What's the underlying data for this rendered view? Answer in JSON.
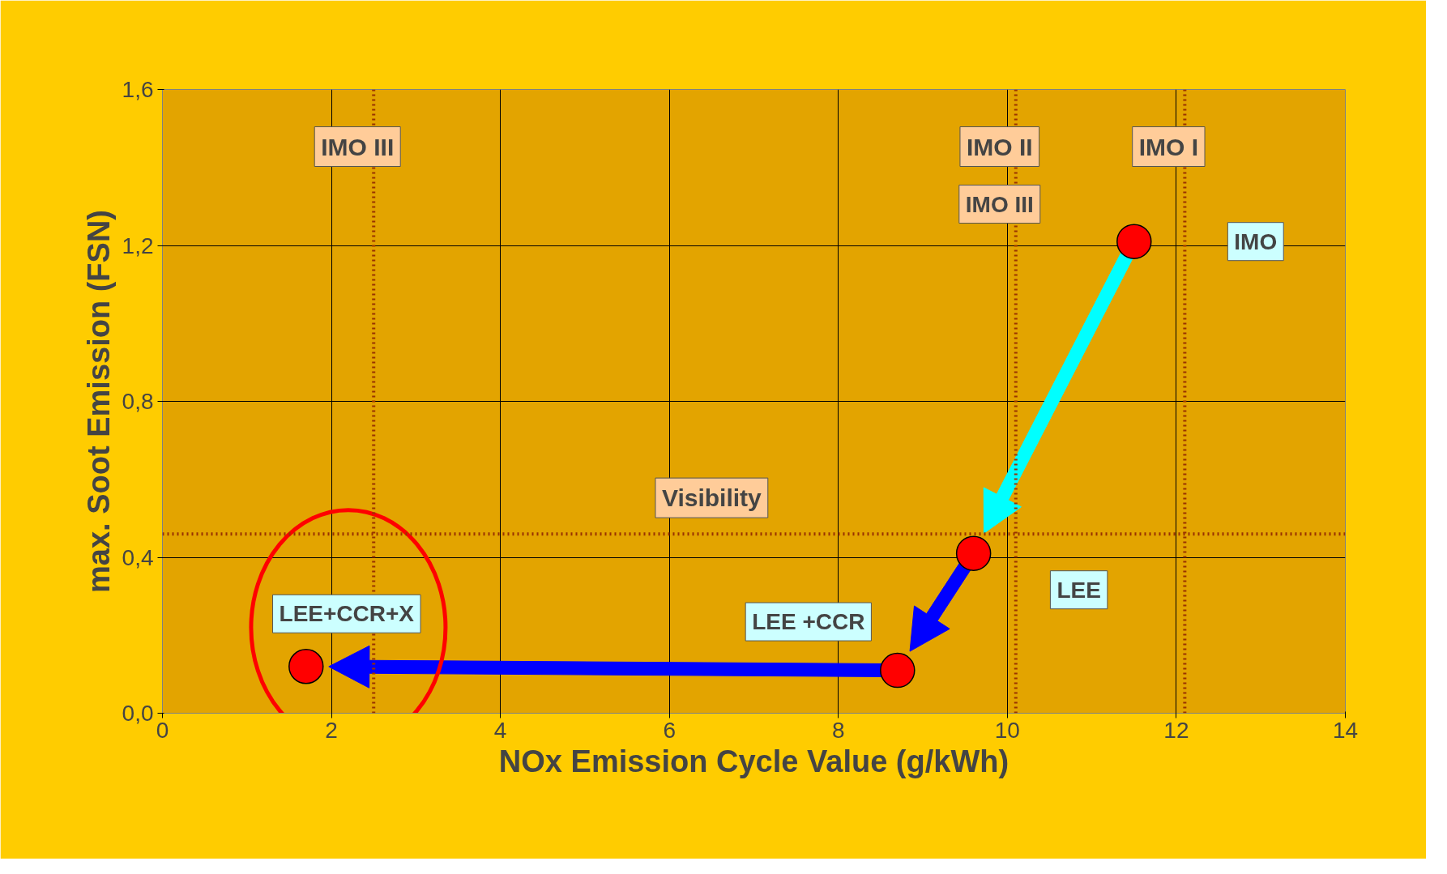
{
  "chart_data": {
    "type": "scatter",
    "xlabel": "NOx Emission Cycle Value (g/kWh)",
    "ylabel": "max. Soot Emission (FSN)",
    "x": [
      11.5,
      9.6,
      8.7,
      1.7
    ],
    "series": [
      {
        "color": "#ff0000",
        "values": [
          1.21,
          0.41,
          0.11,
          0.12
        ]
      }
    ],
    "marker": "circle",
    "xlim": [
      0,
      14
    ],
    "xticks": [
      0,
      2,
      4,
      6,
      8,
      10,
      12,
      14
    ],
    "ylim": [
      0,
      1.6
    ],
    "yticks": [
      {
        "value": 0,
        "label": "0,0"
      },
      {
        "value": 0.4,
        "label": "0,4"
      },
      {
        "value": 0.8,
        "label": "0,8"
      },
      {
        "value": 1.2,
        "label": "1,2"
      },
      {
        "value": 1.6,
        "label": "1,6"
      }
    ],
    "grid": true,
    "ref_lines": [
      {
        "axis": "x",
        "value": 2.5,
        "label": "IMO III",
        "color": "#993300",
        "line_style": "dotted"
      },
      {
        "axis": "x",
        "value": 10.1,
        "label": "IMO II",
        "color": "#993300",
        "line_style": "dotted"
      },
      {
        "axis": "x",
        "value": 12.1,
        "label": "IMO I",
        "color": "#993300",
        "line_style": "dotted"
      },
      {
        "axis": "y",
        "value": 0.46,
        "label": "Visibility",
        "color": "#993300",
        "line_style": "dotted"
      }
    ],
    "annotations": [
      "IMO",
      "LEE",
      "LEE +CCR",
      "LEE+CCR+X",
      "IMO III"
    ]
  }
}
